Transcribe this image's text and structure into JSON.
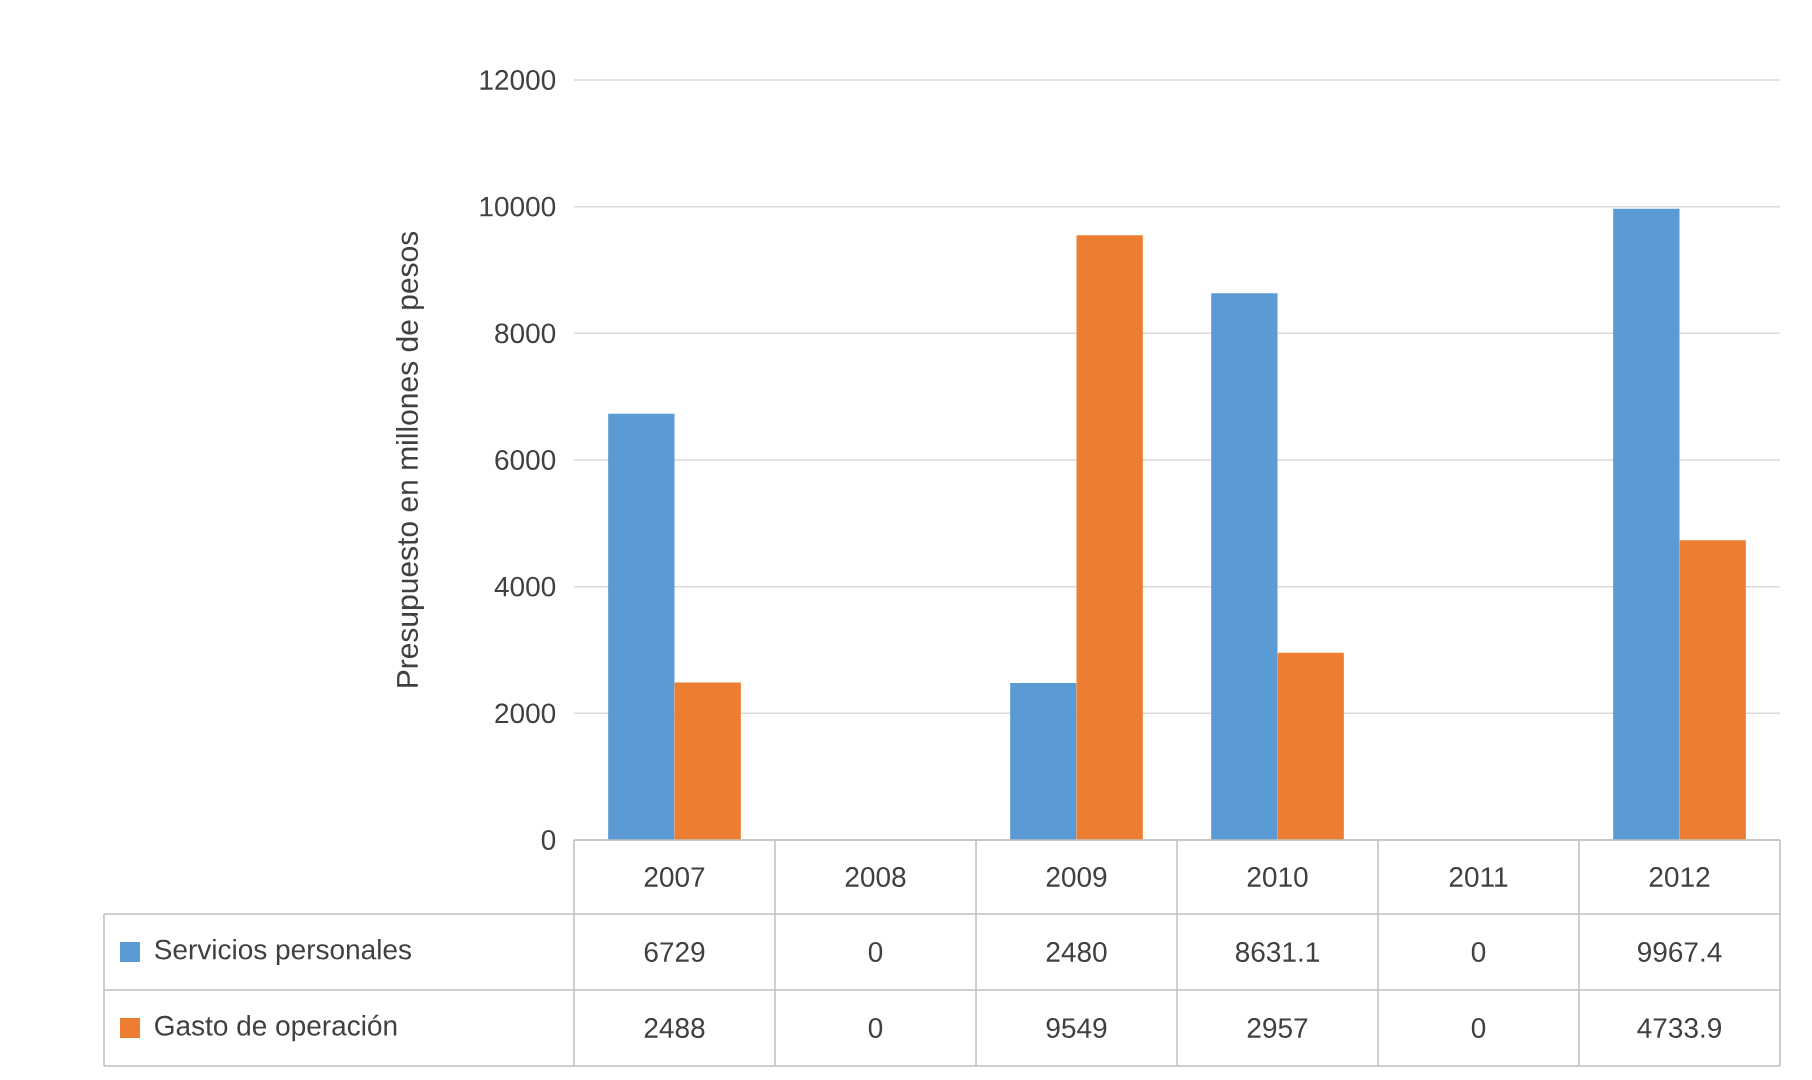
{
  "chart_data": {
    "type": "bar",
    "ylabel": "Presupuesto en millones de pesos",
    "categories": [
      "2007",
      "2008",
      "2009",
      "2010",
      "2011",
      "2012"
    ],
    "series": [
      {
        "name": "Servicios personales",
        "color": "#5b9bd5",
        "values": [
          6729,
          0,
          2480,
          8631.1,
          0,
          9967.4
        ]
      },
      {
        "name": "Gasto de operación",
        "color": "#ed7d31",
        "values": [
          2488,
          0,
          9549,
          2957,
          0,
          4733.9
        ]
      }
    ],
    "ylim": [
      0,
      12000
    ],
    "yticks": [
      0,
      2000,
      4000,
      6000,
      8000,
      10000,
      12000
    ],
    "grid": "y",
    "legend": "bottom",
    "data_labels": true
  }
}
